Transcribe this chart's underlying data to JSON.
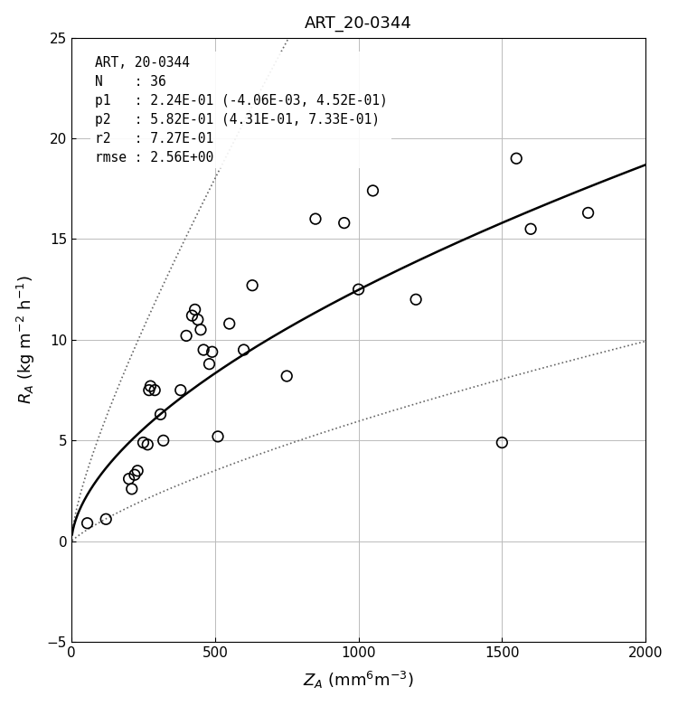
{
  "title": "ART_20-0344",
  "xlabel": "Z_A (mm^6 m^{-3})",
  "ylabel": "R_A (kg m^{-2} h^{-1})",
  "annotation_lines": [
    "ART, 20-0344",
    "N    : 36",
    "p1   : 2.24E-01 (-4.06E-03, 4.52E-01)",
    "p2   : 5.82E-01 (4.31E-01, 7.33E-01)",
    "r2   : 7.27E-01",
    "rmse : 2.56E+00"
  ],
  "p1": 0.224,
  "p2": 0.582,
  "rmse": 2.56,
  "xlim": [
    0,
    2000
  ],
  "ylim": [
    -5,
    25
  ],
  "xticks": [
    0,
    500,
    1000,
    1500,
    2000
  ],
  "yticks": [
    -5,
    0,
    5,
    10,
    15,
    20,
    25
  ],
  "scatter_x": [
    55,
    120,
    200,
    210,
    220,
    230,
    250,
    265,
    270,
    275,
    290,
    310,
    320,
    380,
    400,
    420,
    430,
    440,
    450,
    460,
    480,
    490,
    510,
    550,
    600,
    630,
    750,
    850,
    950,
    1000,
    1050,
    1200,
    1500,
    1550,
    1600,
    1800
  ],
  "scatter_y": [
    0.9,
    1.1,
    3.1,
    2.6,
    3.3,
    3.5,
    4.9,
    4.8,
    7.5,
    7.7,
    7.5,
    6.3,
    5.0,
    7.5,
    10.2,
    11.2,
    11.5,
    11.0,
    10.5,
    9.5,
    8.8,
    9.4,
    5.2,
    10.8,
    9.5,
    12.7,
    8.2,
    16.0,
    15.8,
    12.5,
    17.4,
    12.0,
    4.9,
    19.0,
    15.5,
    16.3
  ],
  "line_color": "#000000",
  "scatter_color": "#000000",
  "confidence_color": "#666666",
  "grid_color": "#bbbbbb",
  "bg_color": "#ffffff",
  "figsize": [
    7.5,
    7.81
  ],
  "dpi": 100
}
